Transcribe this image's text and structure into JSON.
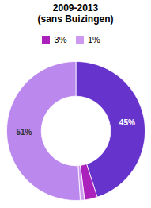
{
  "chart_data": {
    "type": "pie",
    "title": "2009-2013\n(sans Buizingen)",
    "categories": [
      null,
      "3%",
      "1%",
      null
    ],
    "values": [
      45,
      3,
      1,
      51
    ],
    "value_labels": [
      "45%",
      null,
      null,
      "51%"
    ],
    "colors": [
      "#6633cc",
      "#aa22bb",
      "#cc99ee",
      "#bb88ee"
    ],
    "data_labels": true,
    "legend": "top",
    "tick_labels": false
  }
}
